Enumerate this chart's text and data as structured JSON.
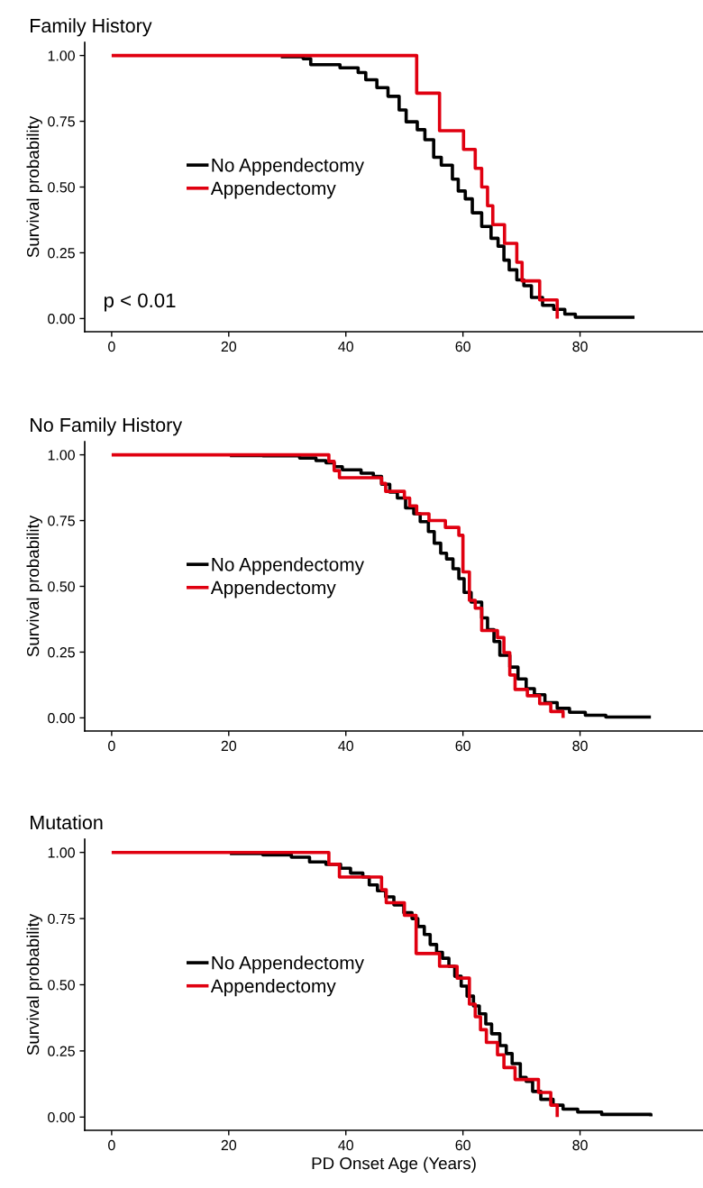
{
  "chart_data": [
    {
      "type": "step",
      "title": "Family History",
      "ylabel": "Survival probability",
      "xlim": [
        -4.6,
        101
      ],
      "ylim": [
        -0.05,
        1.05
      ],
      "xticks": [
        0,
        20,
        40,
        60,
        80
      ],
      "yticks": [
        {
          "value": 0,
          "label": "0.00"
        },
        {
          "value": 0.25,
          "label": "0.25"
        },
        {
          "value": 0.5,
          "label": "0.50"
        },
        {
          "value": 0.75,
          "label": "0.75"
        },
        {
          "value": 1,
          "label": "1.00"
        }
      ],
      "legend": "left",
      "annotations": [
        "p < 0.01"
      ],
      "series": [
        {
          "name": "No Appendectomy",
          "color": "#000000",
          "x": [
            28.9,
            32.7,
            34.0,
            39.0,
            42.1,
            43.4,
            45.3,
            47.2,
            49.1,
            50.3,
            52.2,
            53.5,
            55.0,
            56.3,
            58.2,
            59.2,
            60.4,
            61.6,
            63.2,
            64.8,
            66.0,
            67.0,
            67.9,
            69.2,
            70.4,
            71.7,
            73.6,
            75.5,
            77.4,
            79.2,
            89.3
          ],
          "values": [
            0.995,
            0.988,
            0.965,
            0.953,
            0.935,
            0.908,
            0.878,
            0.845,
            0.793,
            0.748,
            0.718,
            0.68,
            0.613,
            0.583,
            0.53,
            0.485,
            0.455,
            0.402,
            0.35,
            0.305,
            0.275,
            0.222,
            0.185,
            0.147,
            0.125,
            0.08,
            0.05,
            0.035,
            0.017,
            0.005,
            0.005
          ]
        },
        {
          "name": "Appendectomy",
          "color": "#e00010",
          "x": [
            0,
            52.1,
            56.0,
            60.1,
            62.1,
            63.2,
            64.2,
            65.1,
            67.1,
            69.2,
            70.1,
            73.1,
            76.1
          ],
          "values": [
            1,
            0.857,
            0.714,
            0.643,
            0.571,
            0.5,
            0.429,
            0.357,
            0.286,
            0.214,
            0.143,
            0.071,
            0
          ]
        }
      ]
    },
    {
      "type": "step",
      "title": "No Family History",
      "ylabel": "Survival probability",
      "xlim": [
        -4.6,
        101
      ],
      "ylim": [
        -0.05,
        1.05
      ],
      "xticks": [
        0,
        20,
        40,
        60,
        80
      ],
      "yticks": [
        {
          "value": 0,
          "label": "0.00"
        },
        {
          "value": 0.25,
          "label": "0.25"
        },
        {
          "value": 0.5,
          "label": "0.50"
        },
        {
          "value": 0.75,
          "label": "0.75"
        },
        {
          "value": 1,
          "label": "1.00"
        }
      ],
      "legend": "left",
      "series": [
        {
          "name": "No Appendectomy",
          "color": "#000000",
          "x": [
            20.2,
            25.8,
            32.1,
            34.9,
            36.6,
            38.0,
            39.4,
            42.6,
            44.7,
            46.1,
            47.5,
            48.8,
            50.2,
            51.6,
            52.7,
            54.1,
            55.1,
            56.2,
            57.2,
            58.3,
            59.3,
            60.2,
            61.4,
            63.2,
            64.2,
            65.3,
            66.3,
            68.0,
            69.4,
            70.8,
            72.2,
            74.0,
            76.1,
            78.2,
            80.9,
            84.4,
            92.1
          ],
          "values": [
            0.997,
            0.996,
            0.988,
            0.978,
            0.97,
            0.955,
            0.943,
            0.93,
            0.918,
            0.888,
            0.858,
            0.836,
            0.798,
            0.776,
            0.746,
            0.708,
            0.664,
            0.626,
            0.604,
            0.567,
            0.529,
            0.477,
            0.44,
            0.38,
            0.335,
            0.29,
            0.238,
            0.193,
            0.148,
            0.111,
            0.088,
            0.058,
            0.036,
            0.021,
            0.01,
            0.003,
            0.003
          ]
        },
        {
          "name": "Appendectomy",
          "color": "#e00010",
          "x": [
            0,
            37.1,
            38.0,
            38.9,
            46.1,
            46.8,
            50.0,
            50.9,
            52.1,
            54.2,
            57.0,
            59.3,
            60.0,
            61.1,
            62.1,
            63.2,
            65.9,
            67.0,
            68.0,
            68.9,
            71.0,
            73.1,
            75.0,
            77.1
          ],
          "values": [
            1,
            0.975,
            0.94,
            0.913,
            0.891,
            0.861,
            0.836,
            0.806,
            0.776,
            0.75,
            0.724,
            0.694,
            0.555,
            0.447,
            0.417,
            0.332,
            0.305,
            0.248,
            0.163,
            0.108,
            0.084,
            0.054,
            0.024,
            0
          ]
        }
      ]
    },
    {
      "type": "step",
      "title": "Mutation",
      "xlabel": "PD Onset Age (Years)",
      "ylabel": "Survival probability",
      "xlim": [
        -4.6,
        101
      ],
      "ylim": [
        -0.05,
        1.05
      ],
      "xticks": [
        0,
        20,
        40,
        60,
        80
      ],
      "yticks": [
        {
          "value": 0,
          "label": "0.00"
        },
        {
          "value": 0.25,
          "label": "0.25"
        },
        {
          "value": 0.5,
          "label": "0.50"
        },
        {
          "value": 0.75,
          "label": "0.75"
        },
        {
          "value": 1,
          "label": "1.00"
        }
      ],
      "legend": "left",
      "series": [
        {
          "name": "No Appendectomy",
          "color": "#000000",
          "x": [
            20.2,
            25.8,
            30.7,
            33.8,
            36.6,
            39.1,
            40.8,
            42.9,
            44.0,
            45.4,
            46.8,
            48.2,
            49.9,
            51.3,
            52.3,
            53.4,
            54.4,
            55.5,
            56.5,
            57.6,
            58.6,
            59.7,
            60.7,
            61.8,
            62.8,
            63.9,
            64.9,
            66.3,
            67.4,
            68.4,
            69.8,
            70.8,
            71.9,
            73.3,
            75.4,
            77.1,
            79.6,
            83.7,
            92.1
          ],
          "values": [
            0.996,
            0.991,
            0.982,
            0.964,
            0.955,
            0.94,
            0.922,
            0.907,
            0.877,
            0.855,
            0.832,
            0.802,
            0.772,
            0.75,
            0.72,
            0.69,
            0.652,
            0.622,
            0.6,
            0.57,
            0.532,
            0.495,
            0.457,
            0.42,
            0.39,
            0.352,
            0.315,
            0.27,
            0.24,
            0.202,
            0.15,
            0.135,
            0.097,
            0.067,
            0.045,
            0.03,
            0.019,
            0.01,
            0.003
          ]
        },
        {
          "name": "Appendectomy",
          "color": "#e00010",
          "x": [
            0,
            37.1,
            38.9,
            46.1,
            46.9,
            50.0,
            52.0,
            56.0,
            59.0,
            61.1,
            62.1,
            63.0,
            64.0,
            65.9,
            67.0,
            68.9,
            72.9,
            75.0,
            76.1
          ],
          "values": [
            1,
            0.955,
            0.907,
            0.859,
            0.81,
            0.762,
            0.618,
            0.57,
            0.525,
            0.427,
            0.379,
            0.33,
            0.282,
            0.235,
            0.187,
            0.142,
            0.093,
            0.045,
            0
          ]
        }
      ]
    }
  ]
}
